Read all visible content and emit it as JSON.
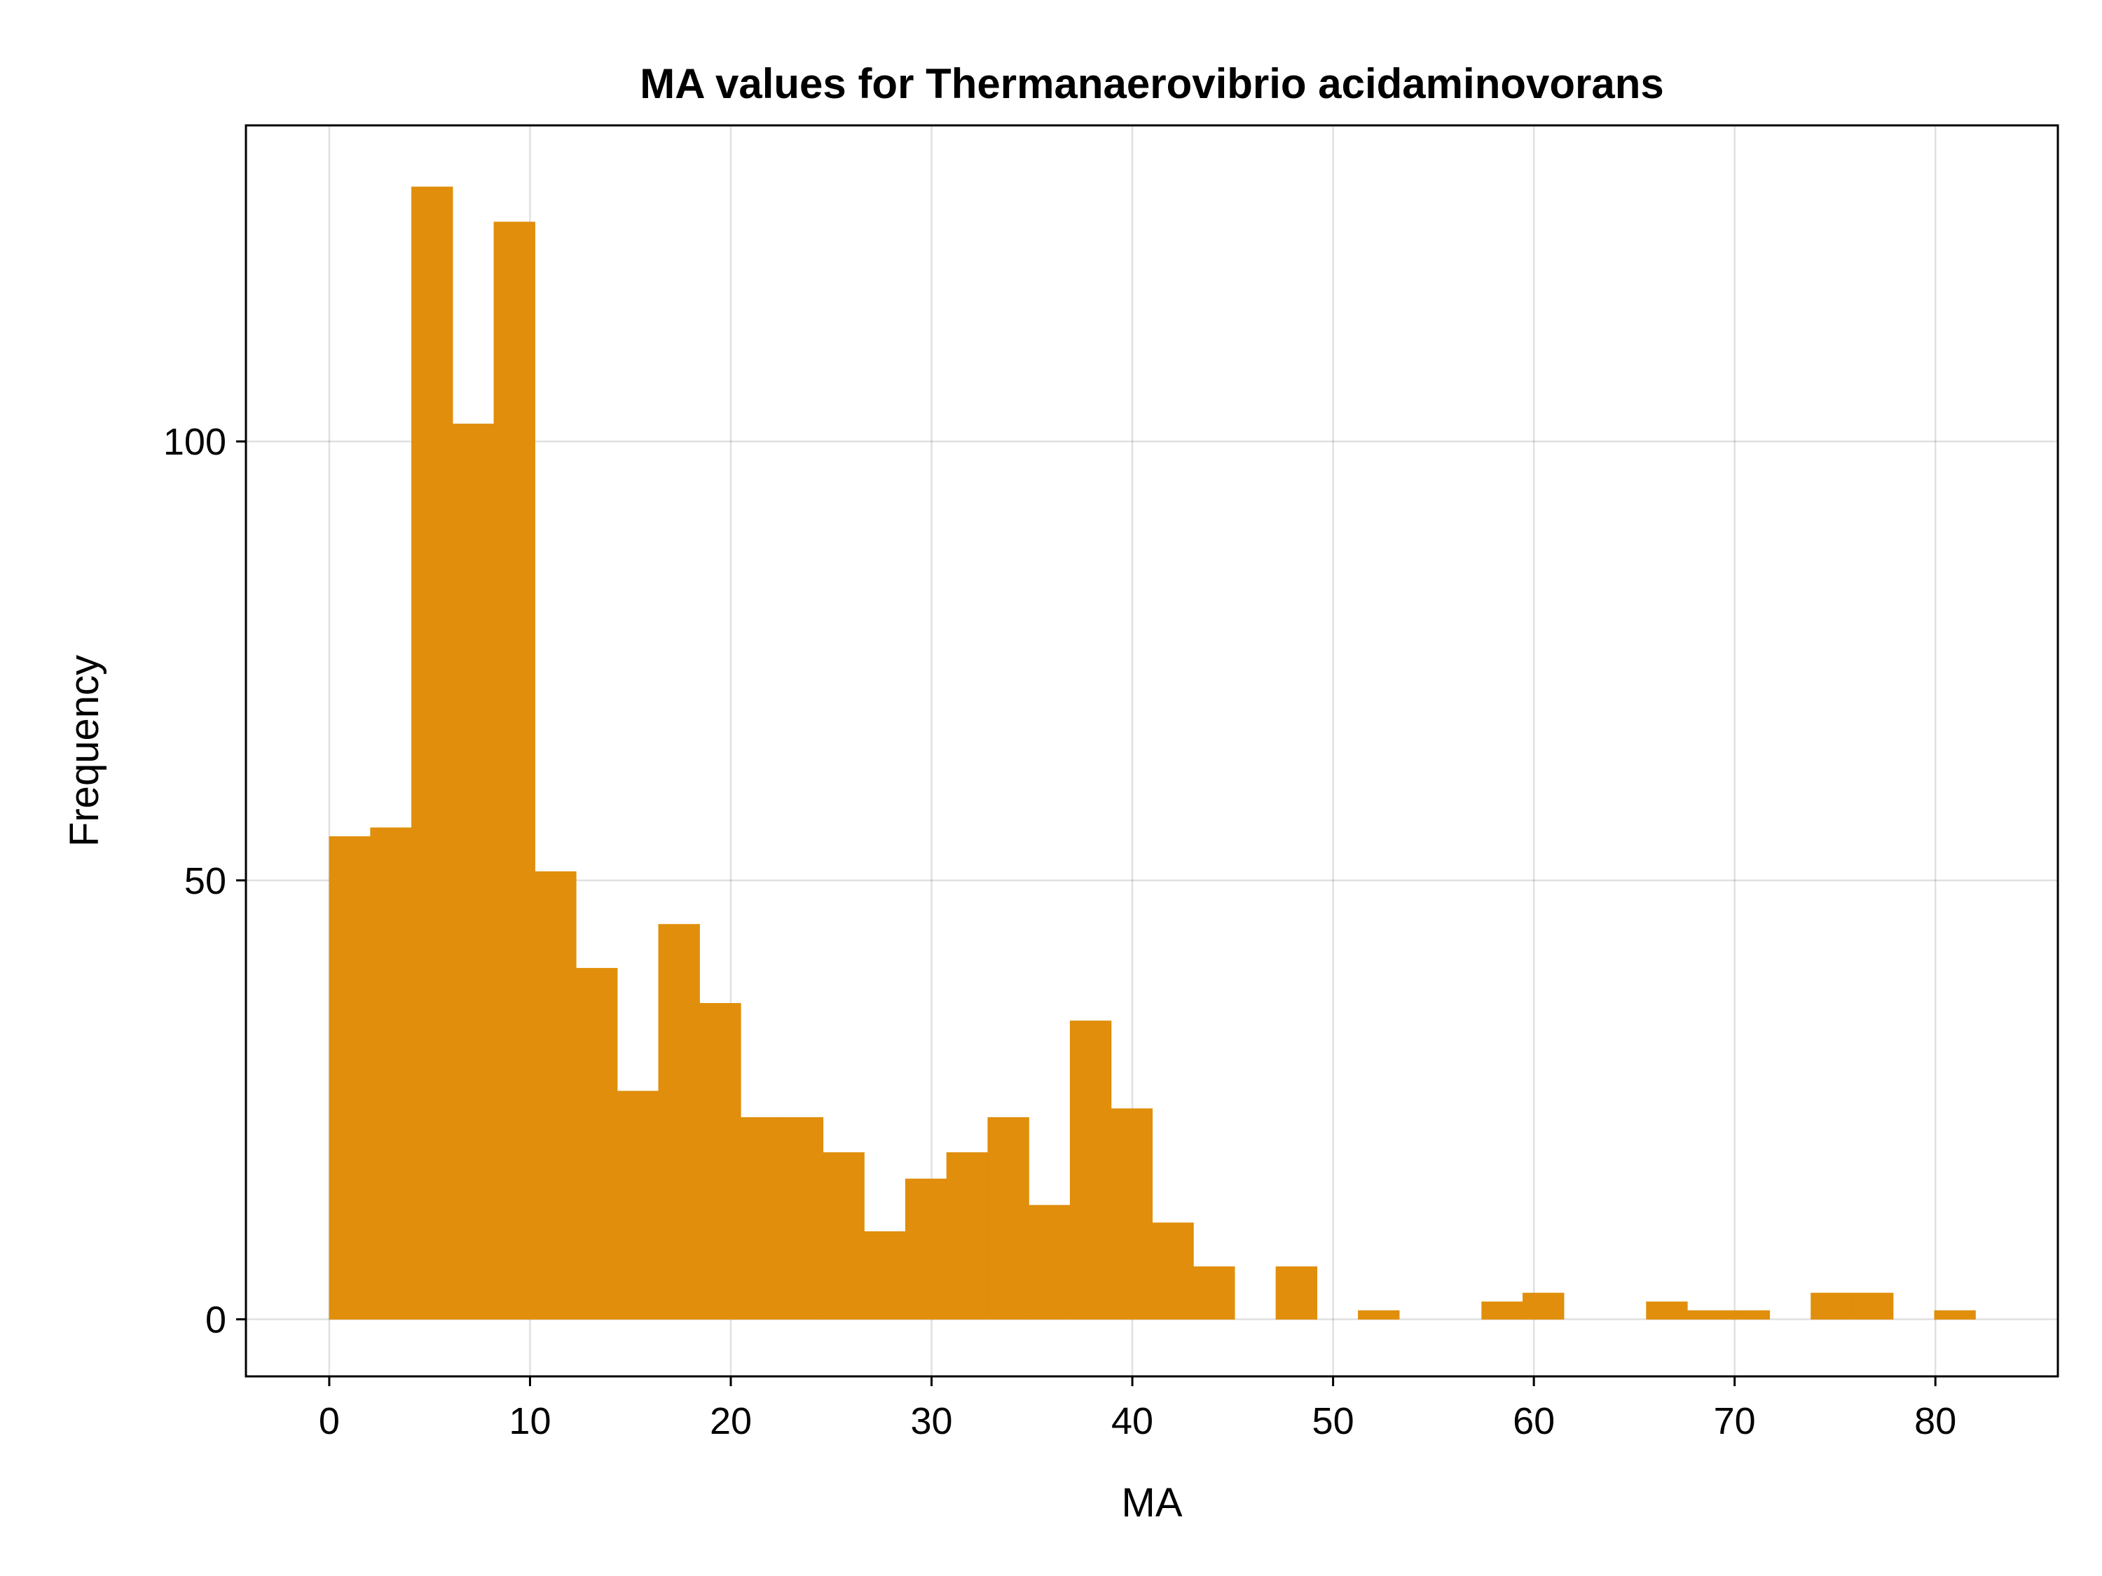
{
  "chart_data": {
    "type": "bar",
    "subtype": "histogram",
    "title": "MA values for Thermanaerovibrio acidaminovorans",
    "xlabel": "MA",
    "ylabel": "Frequency",
    "bin_width": 2.05,
    "bin_start": 0,
    "xlim": [
      -4.15,
      86.1
    ],
    "ylim": [
      -6.5,
      136
    ],
    "xticks": [
      0,
      10,
      20,
      30,
      40,
      50,
      60,
      70,
      80
    ],
    "yticks": [
      0,
      50,
      100
    ],
    "grid": true,
    "bar_color": "#e08e0b",
    "bins": [
      {
        "x0": 0.0,
        "x1": 2.05,
        "count": 55
      },
      {
        "x0": 2.05,
        "x1": 4.1,
        "count": 56
      },
      {
        "x0": 4.1,
        "x1": 6.15,
        "count": 129
      },
      {
        "x0": 6.15,
        "x1": 8.2,
        "count": 102
      },
      {
        "x0": 8.2,
        "x1": 10.25,
        "count": 125
      },
      {
        "x0": 10.25,
        "x1": 12.3,
        "count": 51
      },
      {
        "x0": 12.3,
        "x1": 14.35,
        "count": 40
      },
      {
        "x0": 14.35,
        "x1": 16.4,
        "count": 26
      },
      {
        "x0": 16.4,
        "x1": 18.45,
        "count": 45
      },
      {
        "x0": 18.45,
        "x1": 20.5,
        "count": 36
      },
      {
        "x0": 20.5,
        "x1": 22.55,
        "count": 23
      },
      {
        "x0": 22.55,
        "x1": 24.6,
        "count": 23
      },
      {
        "x0": 24.6,
        "x1": 26.65,
        "count": 19
      },
      {
        "x0": 26.65,
        "x1": 28.7,
        "count": 10
      },
      {
        "x0": 28.7,
        "x1": 30.75,
        "count": 16
      },
      {
        "x0": 30.75,
        "x1": 32.8,
        "count": 19
      },
      {
        "x0": 32.8,
        "x1": 34.85,
        "count": 23
      },
      {
        "x0": 34.85,
        "x1": 36.9,
        "count": 13
      },
      {
        "x0": 36.9,
        "x1": 38.95,
        "count": 34
      },
      {
        "x0": 38.95,
        "x1": 41.0,
        "count": 24
      },
      {
        "x0": 41.0,
        "x1": 43.05,
        "count": 11
      },
      {
        "x0": 43.05,
        "x1": 45.1,
        "count": 6
      },
      {
        "x0": 47.15,
        "x1": 49.2,
        "count": 6
      },
      {
        "x0": 51.25,
        "x1": 53.3,
        "count": 1
      },
      {
        "x0": 57.4,
        "x1": 59.45,
        "count": 2
      },
      {
        "x0": 59.45,
        "x1": 61.5,
        "count": 3
      },
      {
        "x0": 65.6,
        "x1": 67.65,
        "count": 2
      },
      {
        "x0": 67.65,
        "x1": 69.7,
        "count": 1
      },
      {
        "x0": 69.7,
        "x1": 71.75,
        "count": 1
      },
      {
        "x0": 73.8,
        "x1": 75.85,
        "count": 3
      },
      {
        "x0": 75.85,
        "x1": 77.9,
        "count": 3
      },
      {
        "x0": 79.95,
        "x1": 82.0,
        "count": 1
      }
    ]
  }
}
